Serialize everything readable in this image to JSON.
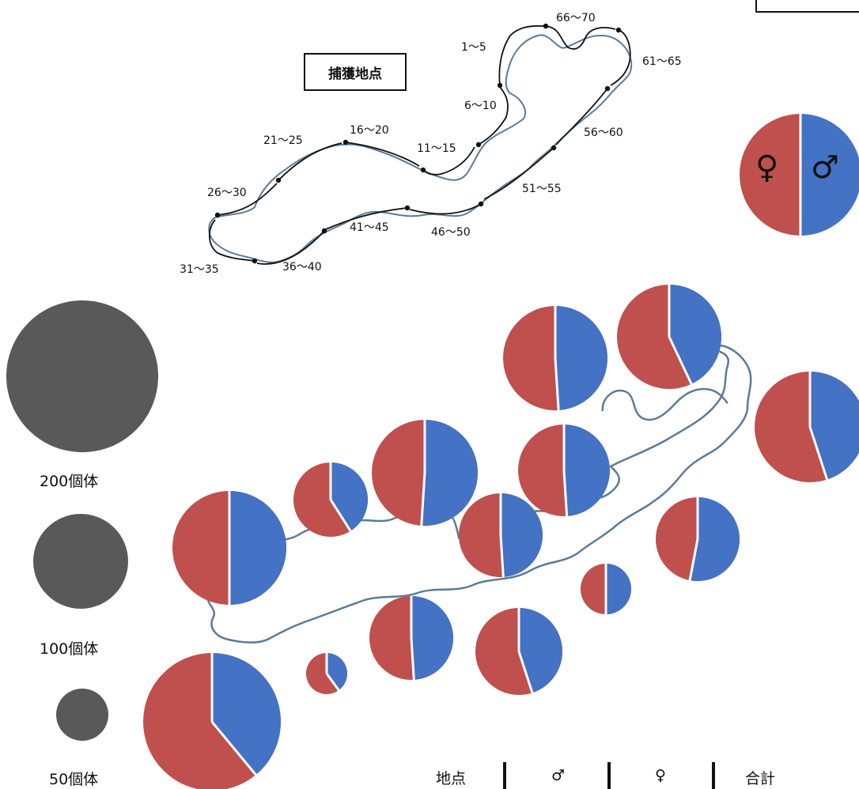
{
  "map_title": "捕獲地点",
  "segment_labels": [
    "1～5",
    "6～10",
    "11～15",
    "16～20",
    "21～25",
    "26～30",
    "31～35",
    "36～40",
    "41～45",
    "46～50",
    "51～55",
    "56～60",
    "61～65",
    "66～70"
  ],
  "size_legend": [
    {
      "label": "200個体",
      "count": 200
    },
    {
      "label": "100個体",
      "count": 100
    },
    {
      "label": "50個体",
      "count": 50
    }
  ],
  "sex_legend": {
    "female_symbol": "♀",
    "male_symbol": "♂"
  },
  "table_headers": [
    "地点",
    "♂",
    "♀",
    "合計"
  ],
  "colors": {
    "male": "#4472C4",
    "female": "#C0504D",
    "legend_bubble": "#595959",
    "lake_outline": "#5a7c97"
  },
  "chart_data": {
    "type": "pie",
    "series": [
      {
        "male_share": 0.49
      },
      {
        "male_share": 0.43
      },
      {
        "male_share": 0.45
      },
      {
        "male_share": 0.51
      },
      {
        "male_share": 0.49
      },
      {
        "male_share": 0.41
      },
      {
        "male_share": 0.49
      },
      {
        "male_share": 0.5
      },
      {
        "male_share": 0.53
      },
      {
        "male_share": 0.5
      },
      {
        "male_share": 0.49
      },
      {
        "male_share": 0.45
      },
      {
        "male_share": 0.4
      },
      {
        "male_share": 0.39
      },
      {
        "male_share": 0.43
      }
    ]
  }
}
